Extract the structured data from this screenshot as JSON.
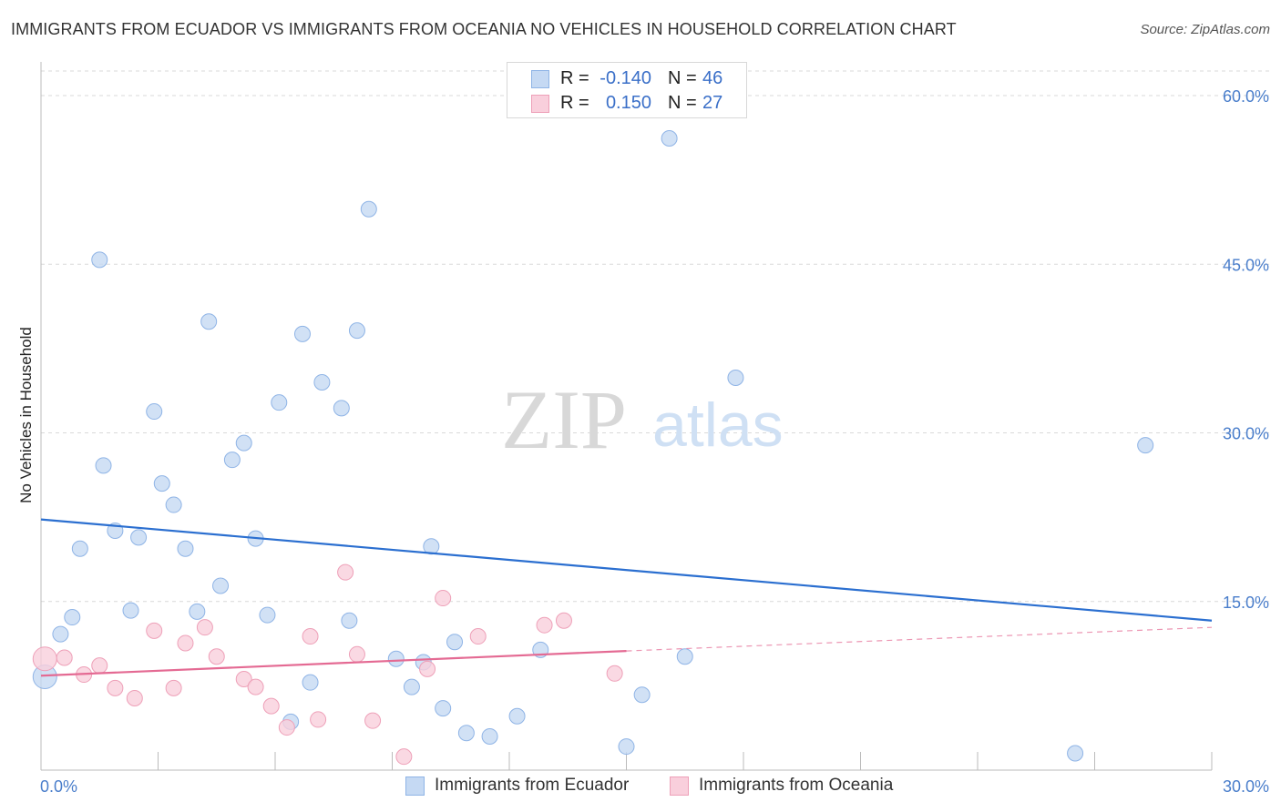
{
  "title": "IMMIGRANTS FROM ECUADOR VS IMMIGRANTS FROM OCEANIA NO VEHICLES IN HOUSEHOLD CORRELATION CHART",
  "source": "Source: ZipAtlas.com",
  "watermark": {
    "zip": "ZIP",
    "atlas": "atlas"
  },
  "legend": {
    "r_label": "R =",
    "n_label": "N =",
    "rows": [
      {
        "r": "-0.140",
        "n": "46",
        "color": "#aecbf0"
      },
      {
        "r": "0.150",
        "n": "27",
        "color": "#f6bfd0"
      }
    ]
  },
  "colors": {
    "ecuador_fill": "#c5d9f3",
    "ecuador_stroke": "#8fb4e6",
    "ecuador_line": "#2b6fd0",
    "oceania_fill": "#f9cfdc",
    "oceania_stroke": "#eea0b8",
    "oceania_line": "#e46a93",
    "tick_text": "#4a7ecb",
    "grid": "#d9d9d9"
  },
  "chart_data": {
    "type": "scatter",
    "title": "IMMIGRANTS FROM ECUADOR VS IMMIGRANTS FROM OCEANIA NO VEHICLES IN HOUSEHOLD CORRELATION CHART",
    "xlabel": "",
    "ylabel": "No Vehicles in Household",
    "xlim": [
      0,
      30
    ],
    "ylim": [
      0,
      63
    ],
    "x_tick_labels": [
      "0.0%",
      "30.0%"
    ],
    "y_ticks": [
      15,
      30,
      45,
      60
    ],
    "y_tick_labels": [
      "15.0%",
      "30.0%",
      "45.0%",
      "60.0%"
    ],
    "grid": "horizontal dashed",
    "legend_position": "bottom",
    "series": [
      {
        "name": "Immigrants from Ecuador",
        "points": [
          [
            0.1,
            8.3
          ],
          [
            0.5,
            12.1
          ],
          [
            0.8,
            13.6
          ],
          [
            1.0,
            19.7
          ],
          [
            1.5,
            45.4
          ],
          [
            1.6,
            27.1
          ],
          [
            1.9,
            21.3
          ],
          [
            2.3,
            14.2
          ],
          [
            2.5,
            20.7
          ],
          [
            2.9,
            31.9
          ],
          [
            3.1,
            25.5
          ],
          [
            3.4,
            23.6
          ],
          [
            3.7,
            19.7
          ],
          [
            4.0,
            14.1
          ],
          [
            4.3,
            39.9
          ],
          [
            4.6,
            16.4
          ],
          [
            4.9,
            27.6
          ],
          [
            5.2,
            29.1
          ],
          [
            5.5,
            20.6
          ],
          [
            5.8,
            13.8
          ],
          [
            6.1,
            32.7
          ],
          [
            6.4,
            4.3
          ],
          [
            6.7,
            38.8
          ],
          [
            6.9,
            7.8
          ],
          [
            7.2,
            34.5
          ],
          [
            7.7,
            32.2
          ],
          [
            7.9,
            13.3
          ],
          [
            8.1,
            39.1
          ],
          [
            8.4,
            49.9
          ],
          [
            9.1,
            9.9
          ],
          [
            9.5,
            7.4
          ],
          [
            9.8,
            9.6
          ],
          [
            10.0,
            19.9
          ],
          [
            10.3,
            5.5
          ],
          [
            10.6,
            11.4
          ],
          [
            10.9,
            3.3
          ],
          [
            11.5,
            3.0
          ],
          [
            12.2,
            4.8
          ],
          [
            12.8,
            10.7
          ],
          [
            15.0,
            2.1
          ],
          [
            15.4,
            6.7
          ],
          [
            16.1,
            56.2
          ],
          [
            16.5,
            10.1
          ],
          [
            17.8,
            34.9
          ],
          [
            26.5,
            1.5
          ],
          [
            28.3,
            28.9
          ]
        ],
        "trend": {
          "x": [
            0,
            30
          ],
          "y": [
            22.3,
            13.3
          ]
        }
      },
      {
        "name": "Immigrants from Oceania",
        "points": [
          [
            0.1,
            9.9
          ],
          [
            0.6,
            10.0
          ],
          [
            1.1,
            8.5
          ],
          [
            1.5,
            9.3
          ],
          [
            1.9,
            7.3
          ],
          [
            2.4,
            6.4
          ],
          [
            2.9,
            12.4
          ],
          [
            3.4,
            7.3
          ],
          [
            3.7,
            11.3
          ],
          [
            4.2,
            12.7
          ],
          [
            4.5,
            10.1
          ],
          [
            5.2,
            8.1
          ],
          [
            5.5,
            7.4
          ],
          [
            5.9,
            5.7
          ],
          [
            6.3,
            3.8
          ],
          [
            6.9,
            11.9
          ],
          [
            7.1,
            4.5
          ],
          [
            7.8,
            17.6
          ],
          [
            8.1,
            10.3
          ],
          [
            8.5,
            4.4
          ],
          [
            9.3,
            1.2
          ],
          [
            9.9,
            9.0
          ],
          [
            10.3,
            15.3
          ],
          [
            11.2,
            11.9
          ],
          [
            12.9,
            12.9
          ],
          [
            13.4,
            13.3
          ],
          [
            14.7,
            8.6
          ]
        ],
        "trend": {
          "x": [
            0,
            15
          ],
          "y": [
            8.4,
            10.6
          ]
        },
        "trend_extension": {
          "x": [
            15,
            30
          ],
          "y": [
            10.6,
            12.7
          ]
        }
      }
    ]
  },
  "bottom_legend": [
    {
      "label": "Immigrants from Ecuador"
    },
    {
      "label": "Immigrants from Oceania"
    }
  ]
}
